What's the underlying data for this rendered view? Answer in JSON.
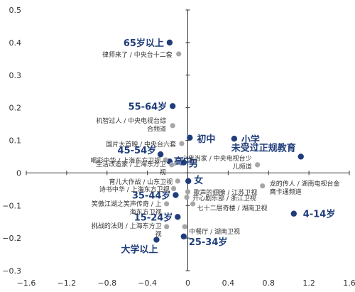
{
  "chart_data": {
    "type": "scatter",
    "title": "",
    "xlabel": "",
    "ylabel": "",
    "xlim": [
      -1.6,
      1.6
    ],
    "ylim": [
      -0.3,
      0.5
    ],
    "x_ticks": [
      -1.6,
      -1.2,
      -0.8,
      -0.4,
      0,
      0.4,
      0.8,
      1.2,
      1.6
    ],
    "y_ticks": [
      -0.3,
      -0.2,
      -0.1,
      0,
      0.1,
      0.2,
      0.3,
      0.4,
      0.5
    ],
    "x_tick_labels": [
      "−1.6",
      "−1.2",
      "−0.8",
      "−0.4",
      "0",
      "0.4",
      "0.8",
      "1.2",
      "1.6"
    ],
    "y_tick_labels": [
      "−0.3",
      "−0.2",
      "−0.1",
      "0",
      "0.1",
      "0.2",
      "0.3",
      "0.4",
      "0.5"
    ],
    "grid": false,
    "colors": {
      "demographic": "#1f3d7a",
      "program": "#a6a6a6",
      "axis": "#333333"
    },
    "series": [
      {
        "group": "demographic",
        "points": [
          {
            "label": "65岁以上",
            "x": -0.18,
            "y": 0.4,
            "lines": [
              "65岁以上"
            ]
          },
          {
            "label": "55-64岁",
            "x": -0.15,
            "y": 0.205,
            "lines": [
              "55-64岁"
            ]
          },
          {
            "label": "初中",
            "x": 0.02,
            "y": 0.108,
            "lines": [
              "初中"
            ]
          },
          {
            "label": "小学",
            "x": 0.46,
            "y": 0.105,
            "lines": [
              "小学"
            ]
          },
          {
            "label": "未受过正规教育",
            "x": 1.12,
            "y": 0.05,
            "lines": [
              "未受过正规教育"
            ]
          },
          {
            "label": "45-54岁",
            "x": -0.27,
            "y": 0.057,
            "lines": [
              "45-54岁"
            ]
          },
          {
            "label": "高中",
            "x": -0.18,
            "y": 0.035,
            "lines": [
              "高中"
            ]
          },
          {
            "label": "男",
            "x": -0.04,
            "y": 0.032,
            "lines": [
              "男"
            ]
          },
          {
            "label": "女",
            "x": 0.005,
            "y": -0.025,
            "lines": [
              "女"
            ]
          },
          {
            "label": "35-44岁",
            "x": -0.12,
            "y": -0.068,
            "lines": [
              "35-44岁"
            ]
          },
          {
            "label": "15-24岁",
            "x": -0.1,
            "y": -0.135,
            "lines": [
              "15-24岁"
            ]
          },
          {
            "label": "4-14岁",
            "x": 1.05,
            "y": -0.125,
            "lines": [
              "4-14岁"
            ]
          },
          {
            "label": "25-34岁",
            "x": -0.04,
            "y": -0.195,
            "lines": [
              "25-34岁"
            ]
          },
          {
            "label": "大学以上",
            "x": -0.31,
            "y": -0.205,
            "lines": [
              "大学以上"
            ]
          }
        ]
      },
      {
        "group": "program",
        "points": [
          {
            "label": "律师来了 / 中央台十二套",
            "x": -0.09,
            "y": 0.365,
            "lines": [
              "律师来了 / 中央台十二套"
            ]
          },
          {
            "label": "机智过人 / 中央电视台综合频道",
            "x": -0.15,
            "y": 0.145,
            "lines": [
              "机智过人 / 中央电视台综",
              "合频道"
            ]
          },
          {
            "label": "国片大首映 / 中央台六套",
            "x": -0.06,
            "y": 0.09,
            "lines": [
              "国片大首映 / 中央台六套"
            ]
          },
          {
            "label": "喝彩中华 / 上海东方卫视",
            "x": -0.22,
            "y": 0.04,
            "lines": [
              "喝彩中华 / 上海东方卫视"
            ]
          },
          {
            "label": "生活改造家 / 上海东方卫视",
            "x": -0.16,
            "y": 0.025,
            "lines": [
              "生活改造家 / 上海东方卫",
              "视"
            ]
          },
          {
            "label": "小鬼当家 / 中央电视台少儿频道",
            "x": 0.69,
            "y": 0.025,
            "lines": [
              "小鬼当家 / 中央电视台少",
              "儿频道"
            ]
          },
          {
            "label": "育儿大作战 / 山东卫视",
            "x": -0.1,
            "y": -0.025,
            "lines": [
              "育儿大作战 / 山东卫视"
            ]
          },
          {
            "label": "诗书中华 / 上海东方卫视",
            "x": -0.14,
            "y": -0.048,
            "lines": [
              "诗书中华 / 上海东方卫视"
            ]
          },
          {
            "label": "歌声的翅膀 / 江苏卫视",
            "x": 0.0,
            "y": -0.058,
            "lines": [
              "歌声的翅膀 / 江苏卫视"
            ]
          },
          {
            "label": "开心剧乐部 / 浙江卫视",
            "x": -0.01,
            "y": -0.075,
            "lines": [
              "开心剧乐部 / 浙江卫视"
            ]
          },
          {
            "label": "龙的传人 / 湖南电视台金鹰卡通频道",
            "x": 0.74,
            "y": -0.04,
            "lines": [
              "龙的传人 / 湖南电视台金",
              "鹰卡通频道"
            ]
          },
          {
            "label": "笑傲江湖之笑声传奇 / 上海东方卫视",
            "x": -0.21,
            "y": -0.095,
            "lines": [
              "笑傲江湖之笑声传奇 / 上",
              "海东方卫视"
            ]
          },
          {
            "label": "七十二层奇楼 / 湖南卫视",
            "x": 0.05,
            "y": -0.095,
            "lines": [
              "七十二层奇楼 / 湖南卫视"
            ]
          },
          {
            "label": "挑战的法则 / 上海东方卫视",
            "x": -0.21,
            "y": -0.165,
            "lines": [
              "挑战的法则 / 上海东方卫",
              "视"
            ]
          },
          {
            "label": "中餐厅 / 湖南卫视",
            "x": -0.03,
            "y": -0.165,
            "lines": [
              "中餐厅 / 湖南卫视"
            ]
          }
        ]
      }
    ]
  }
}
